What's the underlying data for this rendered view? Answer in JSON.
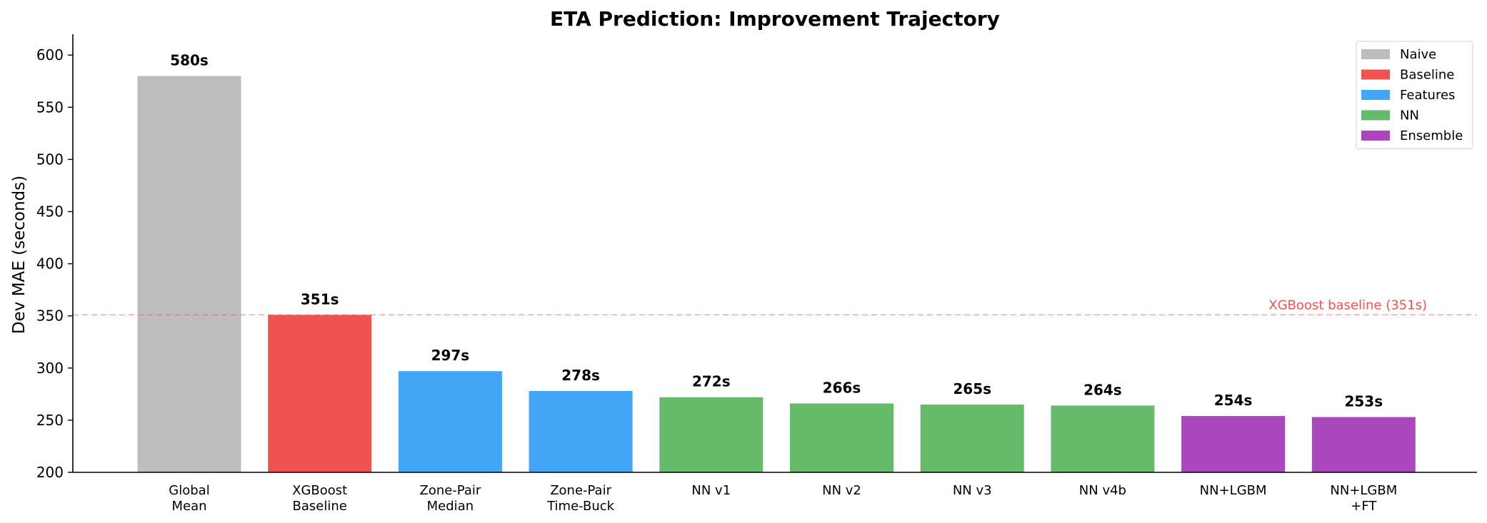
{
  "chart_data": {
    "type": "bar",
    "title": "ETA Prediction: Improvement Trajectory",
    "xlabel": "",
    "ylabel": "Dev MAE (seconds)",
    "ylim": [
      200,
      620
    ],
    "yticks": [
      200,
      250,
      300,
      350,
      400,
      450,
      500,
      550,
      600
    ],
    "grid": false,
    "legend_position": "top-right",
    "groups": [
      {
        "name": "Naive",
        "color": "#bdbdbd"
      },
      {
        "name": "Baseline",
        "color": "#ef5350"
      },
      {
        "name": "Features",
        "color": "#42a5f5"
      },
      {
        "name": "NN",
        "color": "#66bb6a"
      },
      {
        "name": "Ensemble",
        "color": "#ab47bc"
      }
    ],
    "bars": [
      {
        "category": [
          "Global",
          "Mean"
        ],
        "value": 580,
        "label": "580s",
        "group": "Naive"
      },
      {
        "category": [
          "XGBoost",
          "Baseline"
        ],
        "value": 351,
        "label": "351s",
        "group": "Baseline"
      },
      {
        "category": [
          "Zone-Pair",
          "Median"
        ],
        "value": 297,
        "label": "297s",
        "group": "Features"
      },
      {
        "category": [
          "Zone-Pair",
          "Time-Buck"
        ],
        "value": 278,
        "label": "278s",
        "group": "Features"
      },
      {
        "category": [
          "NN v1"
        ],
        "value": 272,
        "label": "272s",
        "group": "NN"
      },
      {
        "category": [
          "NN v2"
        ],
        "value": 266,
        "label": "266s",
        "group": "NN"
      },
      {
        "category": [
          "NN v3"
        ],
        "value": 265,
        "label": "265s",
        "group": "NN"
      },
      {
        "category": [
          "NN v4b"
        ],
        "value": 264,
        "label": "264s",
        "group": "NN"
      },
      {
        "category": [
          "NN+LGBM"
        ],
        "value": 254,
        "label": "254s",
        "group": "Ensemble"
      },
      {
        "category": [
          "NN+LGBM",
          "+FT"
        ],
        "value": 253,
        "label": "253s",
        "group": "Ensemble"
      }
    ],
    "reference_line": {
      "value": 351,
      "label": "XGBoost baseline (351s)",
      "color": "#ef5350",
      "style": "dashed"
    }
  }
}
